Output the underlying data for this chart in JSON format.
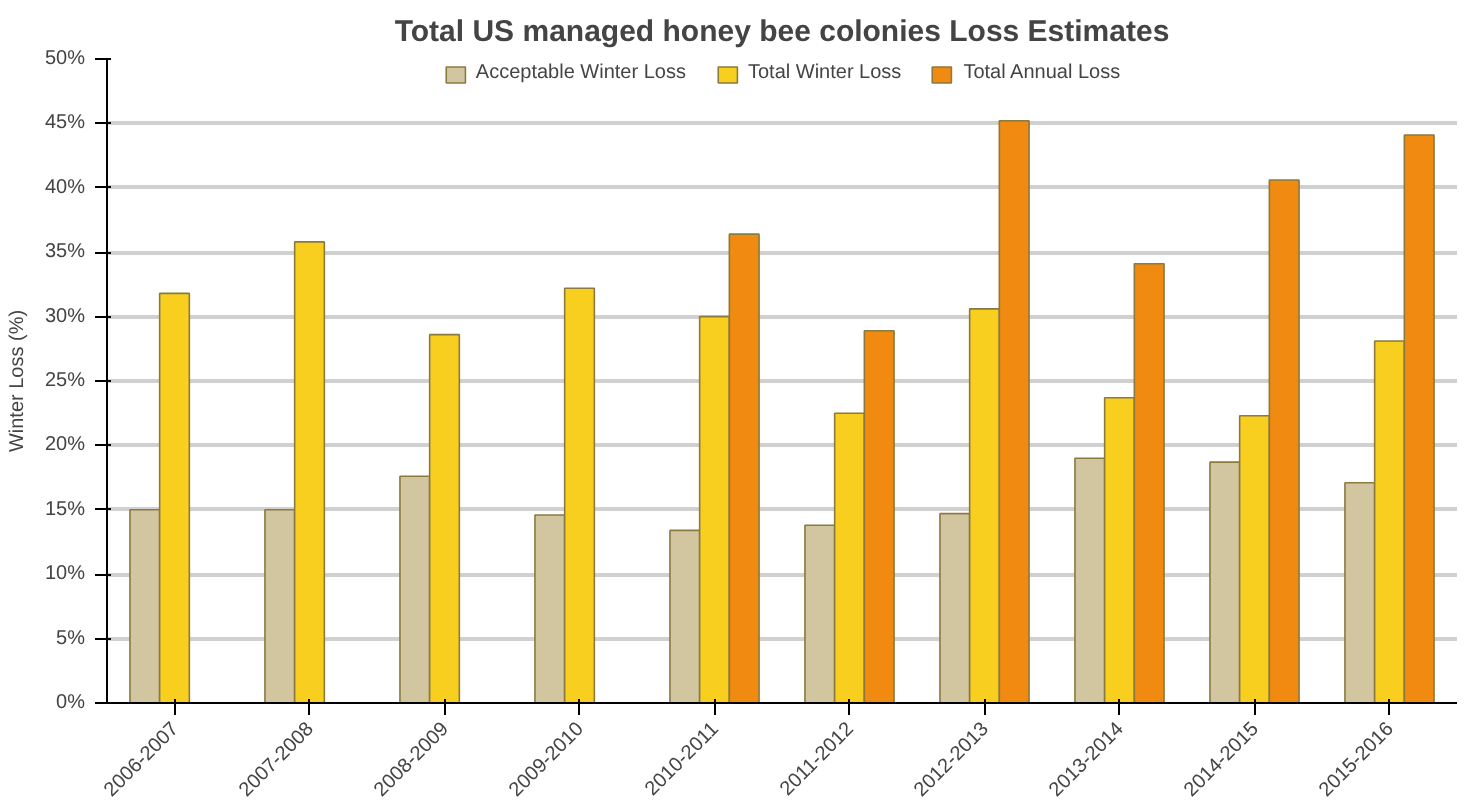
{
  "chart_data": {
    "type": "bar",
    "title": "Total US managed honey bee colonies Loss Estimates",
    "ylabel": "Winter Loss (%)",
    "categories": [
      "2006-2007",
      "2007-2008",
      "2008-2009",
      "2009-2010",
      "2010-2011",
      "2011-2012",
      "2012-2013",
      "2013-2014",
      "2014-2015",
      "2015-2016"
    ],
    "series": [
      {
        "name": "Acceptable Winter Loss",
        "color": "#d2c6a0",
        "values": [
          15,
          15,
          17.6,
          14.6,
          13.4,
          13.8,
          14.7,
          19,
          18.7,
          17.1
        ]
      },
      {
        "name": "Total Winter Loss",
        "color": "#f8cf1e",
        "values": [
          31.8,
          35.8,
          28.6,
          32.2,
          30,
          22.5,
          30.6,
          23.7,
          22.3,
          28.1
        ]
      },
      {
        "name": "Total Annual Loss",
        "color": "#f08a10",
        "values": [
          null,
          null,
          null,
          null,
          36.4,
          28.9,
          45.2,
          34.1,
          40.6,
          44.1
        ]
      }
    ],
    "ylim": [
      0,
      50
    ],
    "yticks": [
      {
        "value": 0,
        "label": "0%"
      },
      {
        "value": 5,
        "label": "5%"
      },
      {
        "value": 10,
        "label": "10%"
      },
      {
        "value": 15,
        "label": "15%"
      },
      {
        "value": 20,
        "label": "20%"
      },
      {
        "value": 25,
        "label": "25%"
      },
      {
        "value": 30,
        "label": "30%"
      },
      {
        "value": 35,
        "label": "35%"
      },
      {
        "value": 40,
        "label": "40%"
      },
      {
        "value": 45,
        "label": "45%"
      },
      {
        "value": 50,
        "label": "50%"
      }
    ],
    "grid": "y",
    "legend": "top"
  }
}
